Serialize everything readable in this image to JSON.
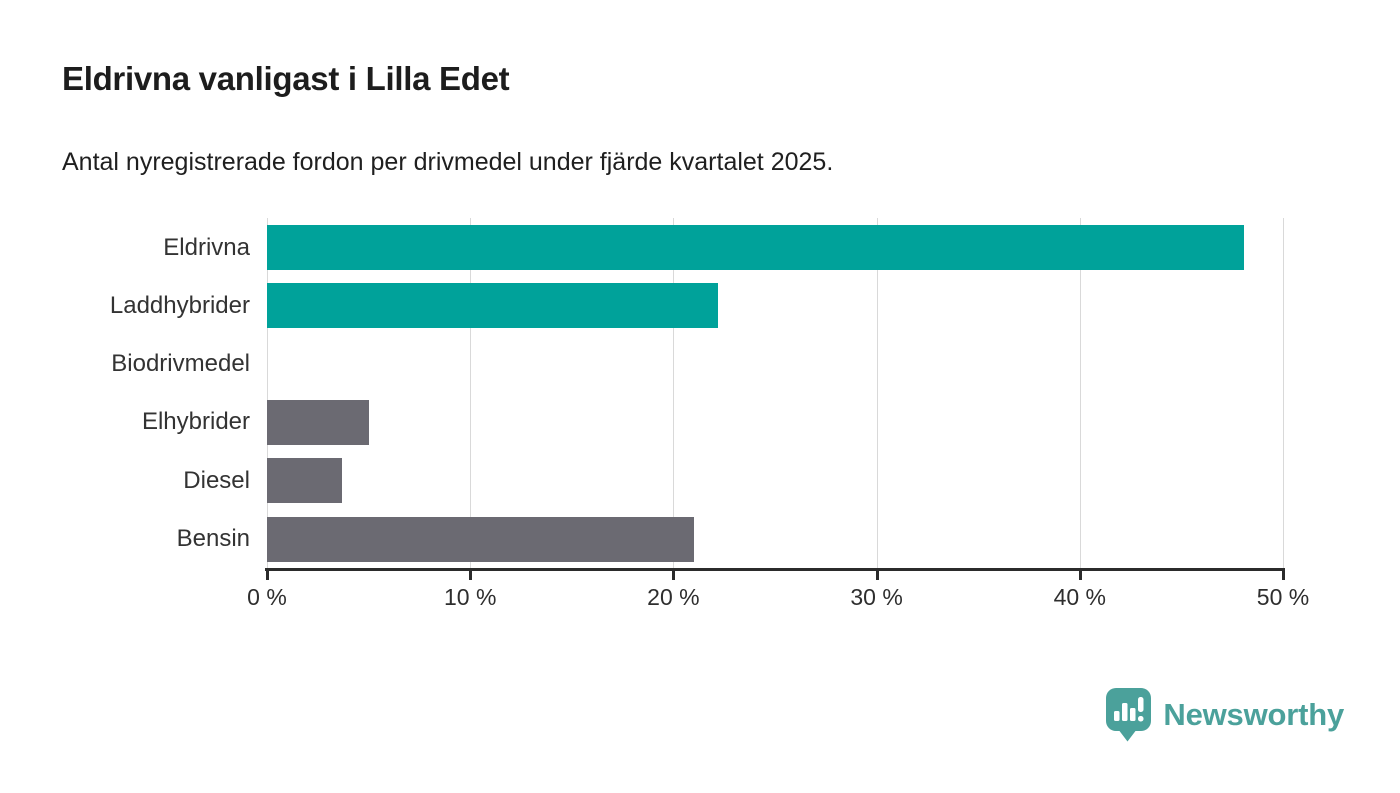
{
  "header": {
    "title": "Eldrivna vanligast i Lilla Edet",
    "subtitle": "Antal nyregistrerade fordon per drivmedel under fjärde kvartalet 2025."
  },
  "chart_data": {
    "type": "bar",
    "orientation": "horizontal",
    "title": "Eldrivna vanligast i Lilla Edet",
    "subtitle": "Antal nyregistrerade fordon per drivmedel under fjärde kvartalet 2025.",
    "categories": [
      "Eldrivna",
      "Laddhybrider",
      "Biodrivmedel",
      "Elhybrider",
      "Diesel",
      "Bensin"
    ],
    "values": [
      48.1,
      22.2,
      0,
      5.0,
      3.7,
      21.0
    ],
    "unit": "%",
    "bar_colors": [
      "#00a29a",
      "#00a29a",
      "#6b6a72",
      "#6b6a72",
      "#6b6a72",
      "#6b6a72"
    ],
    "xlabel": "",
    "ylabel": "",
    "xlim": [
      0,
      50
    ],
    "x_ticks": [
      "0 %",
      "10 %",
      "20 %",
      "30 %",
      "40 %",
      "50 %"
    ],
    "x_tick_values": [
      0,
      10,
      20,
      30,
      40,
      50
    ],
    "grid": true,
    "legend": false
  },
  "branding": {
    "logo_text": "Newsworthy",
    "logo_color": "#4ba19b",
    "logo_icon": "newsworthy-speech-bubble-bar-chart-icon"
  },
  "colors": {
    "accent_teal": "#00a29a",
    "bar_gray": "#6b6a72",
    "axis": "#2b2b2b",
    "gridline": "#d9d9d9",
    "title_text": "#1d1d1d",
    "label_text": "#333333"
  }
}
